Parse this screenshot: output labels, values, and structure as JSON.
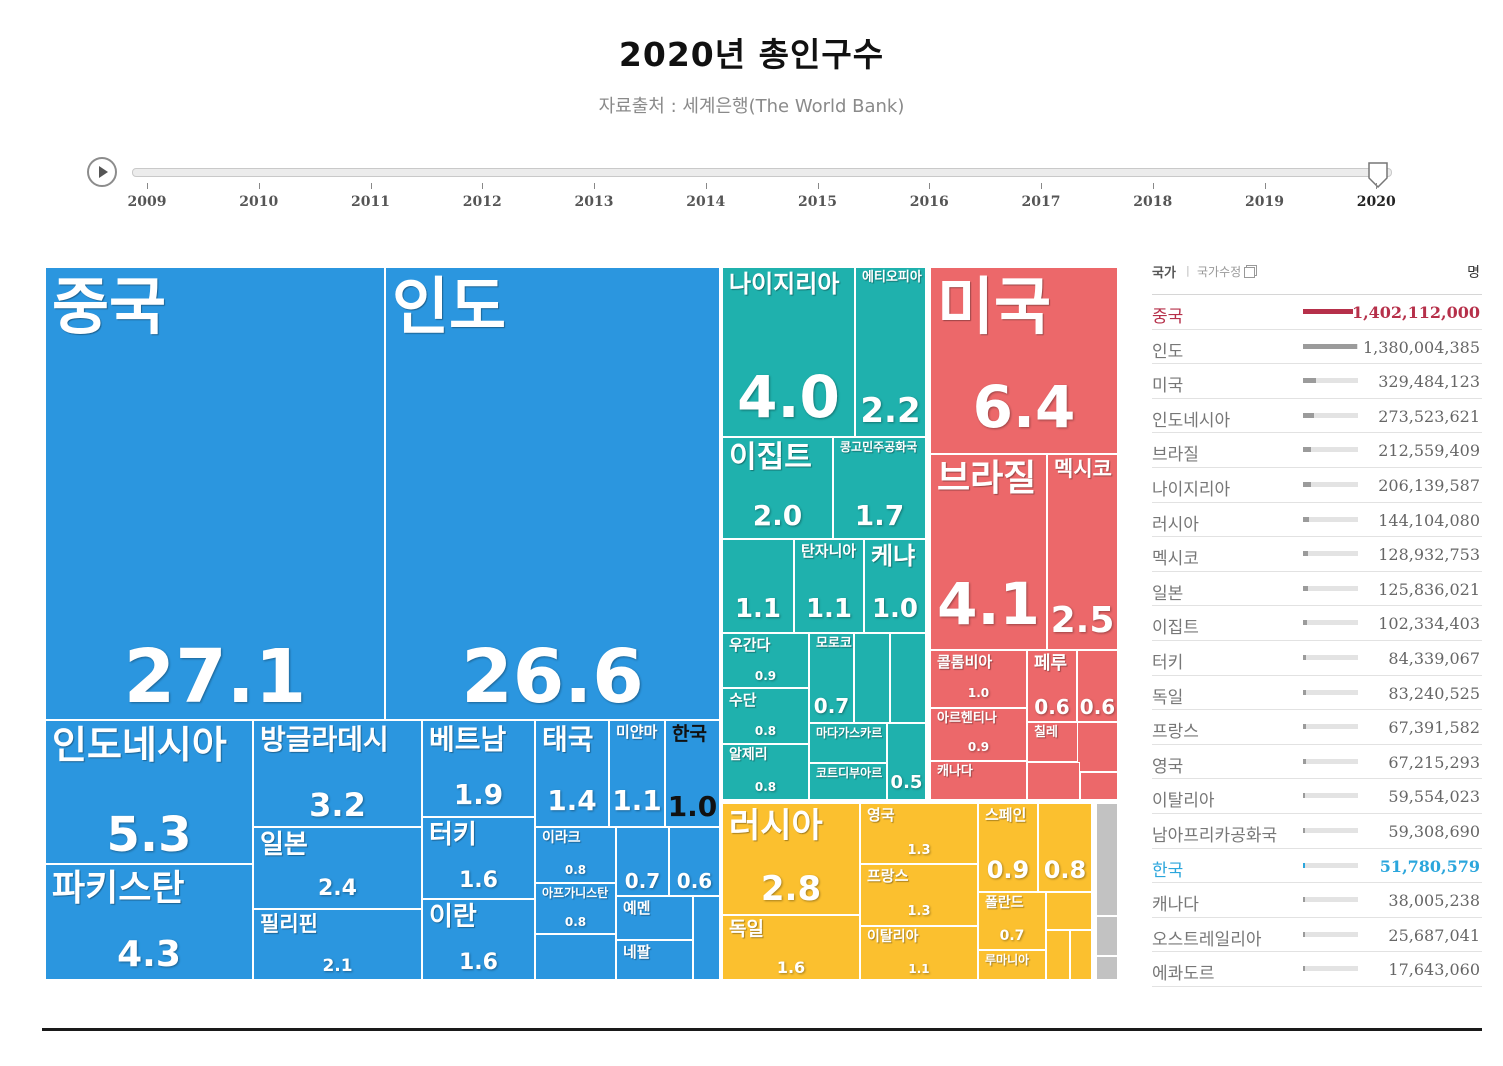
{
  "title": "2020년 총인구수",
  "subtitle": "자료출처 : 세계은행(The World Bank)",
  "timeline": {
    "years": [
      "2009",
      "2010",
      "2011",
      "2012",
      "2013",
      "2014",
      "2015",
      "2016",
      "2017",
      "2018",
      "2019",
      "2020"
    ],
    "selected": "2020"
  },
  "colors": {
    "asia": "#2b96df",
    "africa": "#1fb1ad",
    "americas": "#ec686a",
    "europe": "#fbc02f",
    "other": "#c2c2c2",
    "china_accent": "#b6304a",
    "korea_accent": "#2ba6dc"
  },
  "chart_data": {
    "type": "treemap",
    "title": "2020년 총인구수",
    "unit": "%",
    "items": [
      {
        "name": "중국",
        "value": "27.1",
        "region": "asia"
      },
      {
        "name": "인도",
        "value": "26.6",
        "region": "asia"
      },
      {
        "name": "인도네시아",
        "value": "5.3",
        "region": "asia"
      },
      {
        "name": "파키스탄",
        "value": "4.3",
        "region": "asia"
      },
      {
        "name": "방글라데시",
        "value": "3.2",
        "region": "asia"
      },
      {
        "name": "일본",
        "value": "2.4",
        "region": "asia"
      },
      {
        "name": "필리핀",
        "value": "2.1",
        "region": "asia"
      },
      {
        "name": "베트남",
        "value": "1.9",
        "region": "asia"
      },
      {
        "name": "터키",
        "value": "1.6",
        "region": "asia"
      },
      {
        "name": "이란",
        "value": "1.6",
        "region": "asia"
      },
      {
        "name": "태국",
        "value": "1.4",
        "region": "asia"
      },
      {
        "name": "미얀마",
        "value": "1.1",
        "region": "asia"
      },
      {
        "name": "한국",
        "value": "1.0",
        "region": "asia"
      },
      {
        "name": "이라크",
        "value": "0.8",
        "region": "asia"
      },
      {
        "name": "아프가니스탄",
        "value": "0.8",
        "region": "asia"
      },
      {
        "name": "",
        "value": "0.7",
        "region": "asia"
      },
      {
        "name": "",
        "value": "0.6",
        "region": "asia"
      },
      {
        "name": "예멘",
        "value": "",
        "region": "asia"
      },
      {
        "name": "네팔",
        "value": "",
        "region": "asia"
      },
      {
        "name": "나이지리아",
        "value": "4.0",
        "region": "africa"
      },
      {
        "name": "에티오피아",
        "value": "2.2",
        "region": "africa"
      },
      {
        "name": "이집트",
        "value": "2.0",
        "region": "africa"
      },
      {
        "name": "콩고민주공화국",
        "value": "1.7",
        "region": "africa"
      },
      {
        "name": "",
        "value": "1.1",
        "region": "africa"
      },
      {
        "name": "탄자니아",
        "value": "1.1",
        "region": "africa"
      },
      {
        "name": "케냐",
        "value": "1.0",
        "region": "africa"
      },
      {
        "name": "우간다",
        "value": "0.9",
        "region": "africa"
      },
      {
        "name": "수단",
        "value": "0.8",
        "region": "africa"
      },
      {
        "name": "알제리",
        "value": "0.8",
        "region": "africa"
      },
      {
        "name": "모로코",
        "value": "0.7",
        "region": "africa"
      },
      {
        "name": "마다가스카르",
        "value": "",
        "region": "africa"
      },
      {
        "name": "코트디부아르",
        "value": "",
        "region": "africa"
      },
      {
        "name": "",
        "value": "0.5",
        "region": "africa"
      },
      {
        "name": "미국",
        "value": "6.4",
        "region": "americas"
      },
      {
        "name": "브라질",
        "value": "4.1",
        "region": "americas"
      },
      {
        "name": "멕시코",
        "value": "2.5",
        "region": "americas"
      },
      {
        "name": "콜롬비아",
        "value": "1.0",
        "region": "americas"
      },
      {
        "name": "페루",
        "value": "0.6",
        "region": "americas"
      },
      {
        "name": "",
        "value": "0.6",
        "region": "americas"
      },
      {
        "name": "아르헨티나",
        "value": "0.9",
        "region": "americas"
      },
      {
        "name": "칠레",
        "value": "",
        "region": "americas"
      },
      {
        "name": "캐나다",
        "value": "",
        "region": "americas"
      },
      {
        "name": "러시아",
        "value": "2.8",
        "region": "europe"
      },
      {
        "name": "독일",
        "value": "1.6",
        "region": "europe"
      },
      {
        "name": "영국",
        "value": "1.3",
        "region": "europe"
      },
      {
        "name": "프랑스",
        "value": "1.3",
        "region": "europe"
      },
      {
        "name": "이탈리아",
        "value": "1.1",
        "region": "europe"
      },
      {
        "name": "스페인",
        "value": "0.9",
        "region": "europe"
      },
      {
        "name": "",
        "value": "0.8",
        "region": "europe"
      },
      {
        "name": "폴란드",
        "value": "0.7",
        "region": "europe"
      },
      {
        "name": "루마니아",
        "value": "",
        "region": "europe"
      }
    ]
  },
  "legend": {
    "country_label": "국가",
    "separator": "|",
    "edit_label": "국가수정",
    "unit": "명",
    "max_value": 1402112000,
    "rows": [
      {
        "name": "중국",
        "value": "1,402,112,000",
        "pop": 1402112000,
        "highlight": "china"
      },
      {
        "name": "인도",
        "value": "1,380,004,385",
        "pop": 1380004385
      },
      {
        "name": "미국",
        "value": "329,484,123",
        "pop": 329484123
      },
      {
        "name": "인도네시아",
        "value": "273,523,621",
        "pop": 273523621
      },
      {
        "name": "브라질",
        "value": "212,559,409",
        "pop": 212559409
      },
      {
        "name": "나이지리아",
        "value": "206,139,587",
        "pop": 206139587
      },
      {
        "name": "러시아",
        "value": "144,104,080",
        "pop": 144104080
      },
      {
        "name": "멕시코",
        "value": "128,932,753",
        "pop": 128932753
      },
      {
        "name": "일본",
        "value": "125,836,021",
        "pop": 125836021
      },
      {
        "name": "이집트",
        "value": "102,334,403",
        "pop": 102334403
      },
      {
        "name": "터키",
        "value": "84,339,067",
        "pop": 84339067
      },
      {
        "name": "독일",
        "value": "83,240,525",
        "pop": 83240525
      },
      {
        "name": "프랑스",
        "value": "67,391,582",
        "pop": 67391582
      },
      {
        "name": "영국",
        "value": "67,215,293",
        "pop": 67215293
      },
      {
        "name": "이탈리아",
        "value": "59,554,023",
        "pop": 59554023
      },
      {
        "name": "남아프리카공화국",
        "value": "59,308,690",
        "pop": 59308690
      },
      {
        "name": "한국",
        "value": "51,780,579",
        "pop": 51780579,
        "highlight": "korea"
      },
      {
        "name": "캐나다",
        "value": "38,005,238",
        "pop": 38005238
      },
      {
        "name": "오스트레일리아",
        "value": "25,687,041",
        "pop": 25687041
      },
      {
        "name": "에콰도르",
        "value": "17,643,060",
        "pop": 17643060
      }
    ]
  }
}
